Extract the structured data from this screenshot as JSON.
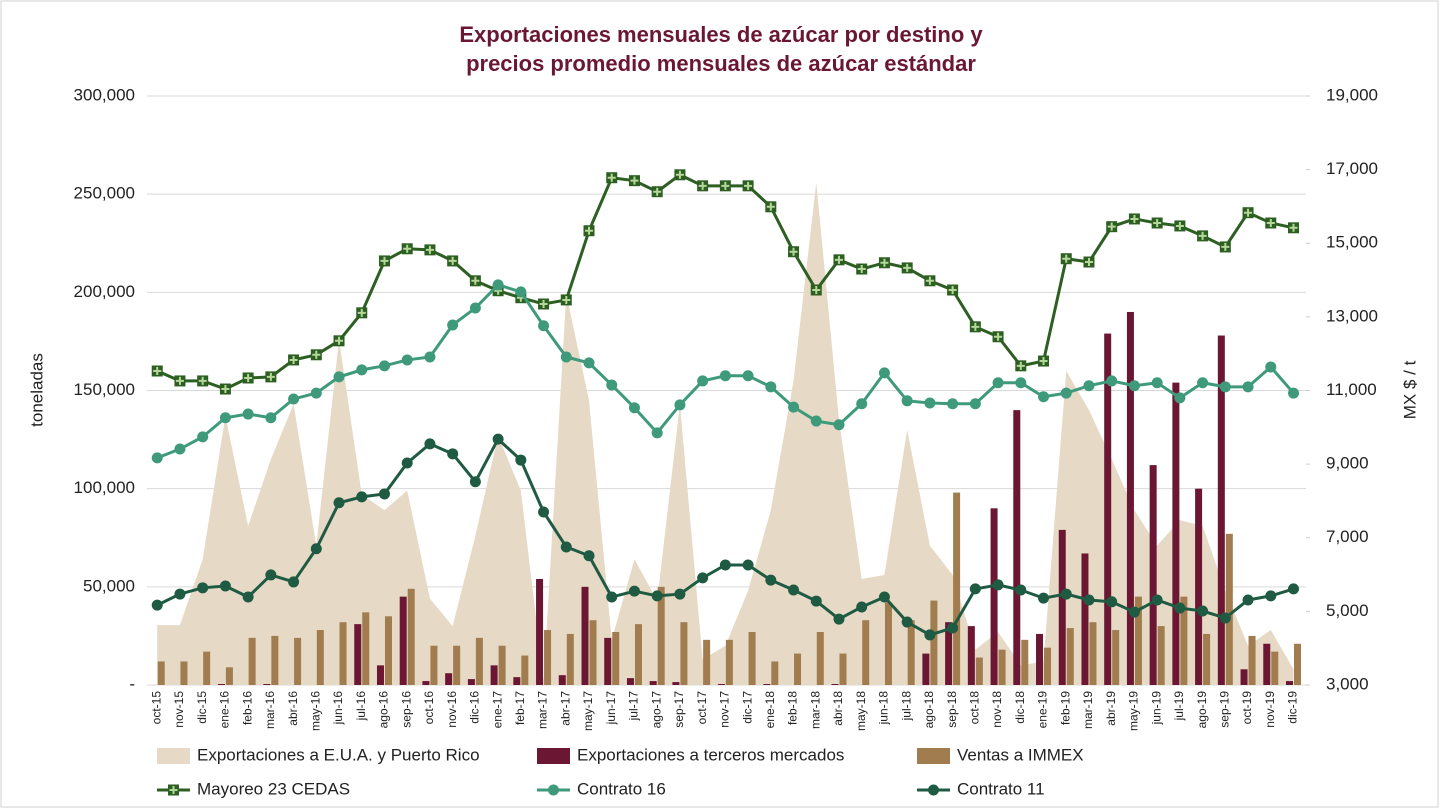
{
  "chart_data": {
    "type": "combo",
    "title": [
      "Exportaciones mensuales de azúcar por destino y",
      "precios promedio mensuales de azúcar estándar"
    ],
    "y_label": "toneladas",
    "y2_label": "MX $ / t",
    "categories": [
      "oct-15",
      "nov-15",
      "dic-15",
      "ene-16",
      "feb-16",
      "mar-16",
      "abr-16",
      "may-16",
      "jun-16",
      "jul-16",
      "ago-16",
      "sep-16",
      "oct-16",
      "nov-16",
      "dic-16",
      "ene-17",
      "feb-17",
      "mar-17",
      "abr-17",
      "may-17",
      "jun-17",
      "jul-17",
      "ago-17",
      "sep-17",
      "oct-17",
      "nov-17",
      "dic-17",
      "ene-18",
      "feb-18",
      "mar-18",
      "abr-18",
      "may-18",
      "jun-18",
      "jul-18",
      "ago-18",
      "sep-18",
      "oct-18",
      "nov-18",
      "dic-18",
      "ene-19",
      "feb-19",
      "mar-19",
      "abr-19",
      "may-19",
      "jun-19",
      "jul-19",
      "ago-19",
      "sep-19",
      "oct-19",
      "nov-19",
      "dic-19"
    ],
    "ylim": [
      0,
      300000
    ],
    "yticks": [
      {
        "value": 0,
        "label": "-"
      },
      {
        "value": 50000,
        "label": "50,000"
      },
      {
        "value": 100000,
        "label": "100,000"
      },
      {
        "value": 150000,
        "label": "150,000"
      },
      {
        "value": 200000,
        "label": "200,000"
      },
      {
        "value": 250000,
        "label": "250,000"
      },
      {
        "value": 300000,
        "label": "300,000"
      }
    ],
    "y2lim": [
      3000,
      19000
    ],
    "y2ticks": [
      {
        "value": 3000,
        "label": "3,000"
      },
      {
        "value": 5000,
        "label": "5,000"
      },
      {
        "value": 7000,
        "label": "7,000"
      },
      {
        "value": 9000,
        "label": "9,000"
      },
      {
        "value": 11000,
        "label": "11,000"
      },
      {
        "value": 13000,
        "label": "13,000"
      },
      {
        "value": 15000,
        "label": "15,000"
      },
      {
        "value": 17000,
        "label": "17,000"
      },
      {
        "value": 19000,
        "label": "19,000"
      }
    ],
    "grid": true,
    "legend": "bottom",
    "series": [
      {
        "name": "Exportaciones a E.U.A. y Puerto Rico",
        "type": "area",
        "axis": "y",
        "color": "#e6d9c5",
        "values": [
          30500,
          30500,
          64000,
          137000,
          81000,
          115000,
          143000,
          71000,
          176000,
          97000,
          89000,
          99000,
          44000,
          30000,
          76000,
          127000,
          99000,
          2000,
          199000,
          145000,
          23000,
          64000,
          43000,
          143000,
          13000,
          20000,
          48000,
          89000,
          155000,
          256000,
          135000,
          54000,
          56000,
          130000,
          71000,
          56000,
          18000,
          27000,
          10000,
          12000,
          160000,
          140000,
          115000,
          89000,
          71000,
          84000,
          81000,
          48000,
          20000,
          28000,
          8000
        ]
      },
      {
        "name": "Exportaciones a terceros mercados",
        "type": "bar",
        "axis": "y",
        "color": "#6b1733",
        "values": [
          0,
          0,
          0,
          500,
          0,
          500,
          0,
          0,
          0,
          31000,
          10000,
          45000,
          2000,
          6000,
          3000,
          10000,
          4000,
          54000,
          5000,
          50000,
          24000,
          3500,
          2000,
          1500,
          0,
          500,
          0,
          500,
          0,
          0,
          500,
          0,
          0,
          0,
          16000,
          32000,
          30000,
          90000,
          140000,
          26000,
          79000,
          67000,
          179000,
          190000,
          112000,
          154000,
          100000,
          178000,
          8000,
          21000,
          2000
        ]
      },
      {
        "name": "Ventas a IMMEX",
        "type": "bar",
        "axis": "y",
        "color": "#a07c4e",
        "values": [
          12000,
          12000,
          17000,
          9000,
          24000,
          25000,
          24000,
          28000,
          32000,
          37000,
          35000,
          49000,
          20000,
          20000,
          24000,
          20000,
          15000,
          28000,
          26000,
          33000,
          27000,
          31000,
          50000,
          32000,
          23000,
          23000,
          27000,
          12000,
          16000,
          27000,
          16000,
          33000,
          42000,
          33000,
          43000,
          98000,
          14000,
          18000,
          23000,
          19000,
          29000,
          32000,
          28000,
          45000,
          30000,
          45000,
          26000,
          77000,
          25000,
          17000,
          21000
        ]
      },
      {
        "name": "Mayoreo 23 CEDAS",
        "type": "line",
        "axis": "y2",
        "color": "#2d5f23",
        "marker": "square-plus",
        "values": [
          11530,
          11260,
          11260,
          11040,
          11340,
          11370,
          11830,
          11970,
          12350,
          13110,
          14520,
          14850,
          14820,
          14520,
          13980,
          13710,
          13520,
          13350,
          13460,
          15340,
          16780,
          16700,
          16400,
          16860,
          16560,
          16560,
          16560,
          15990,
          14770,
          13730,
          14550,
          14300,
          14470,
          14330,
          13980,
          13730,
          12730,
          12460,
          11670,
          11800,
          14580,
          14490,
          15450,
          15660,
          15550,
          15470,
          15200,
          14900,
          15830,
          15550,
          15420
        ]
      },
      {
        "name": "Contrato 16",
        "type": "line",
        "axis": "y2",
        "color": "#3f9a7c",
        "marker": "circle",
        "values": [
          9170,
          9410,
          9740,
          10260,
          10360,
          10260,
          10770,
          10930,
          11370,
          11560,
          11670,
          11830,
          11910,
          12780,
          13240,
          13870,
          13680,
          12760,
          11910,
          11750,
          11150,
          10530,
          9850,
          10610,
          11260,
          11400,
          11400,
          11100,
          10550,
          10170,
          10070,
          10640,
          11480,
          10720,
          10660,
          10640,
          10640,
          11210,
          11210,
          10830,
          10930,
          11130,
          11260,
          11130,
          11210,
          10800,
          11210,
          11100,
          11100,
          11640,
          10930
        ]
      },
      {
        "name": "Contrato 11",
        "type": "line",
        "axis": "y2",
        "color": "#1f5a42",
        "marker": "circle",
        "values": [
          5170,
          5470,
          5640,
          5690,
          5390,
          5990,
          5800,
          6700,
          7950,
          8110,
          8190,
          9030,
          9550,
          9280,
          8520,
          9680,
          9110,
          7700,
          6750,
          6510,
          5390,
          5550,
          5420,
          5470,
          5910,
          6260,
          6260,
          5850,
          5580,
          5280,
          4790,
          5120,
          5390,
          4710,
          4360,
          4550,
          5610,
          5720,
          5580,
          5360,
          5470,
          5310,
          5260,
          4980,
          5310,
          5090,
          5010,
          4820,
          5310,
          5420,
          5610
        ]
      }
    ]
  }
}
